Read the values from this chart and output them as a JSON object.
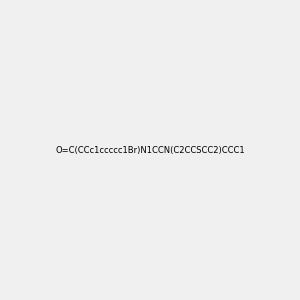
{
  "smiles": "O=C(CCc1ccccc1Br)N1CCN(C2CCSCC2)CCC1",
  "image_size": 300,
  "background_color": "#f0f0f0",
  "atom_colors": {
    "Br": "#d4a020",
    "N": "#0000ff",
    "O": "#ff0000",
    "S": "#c8a000"
  }
}
